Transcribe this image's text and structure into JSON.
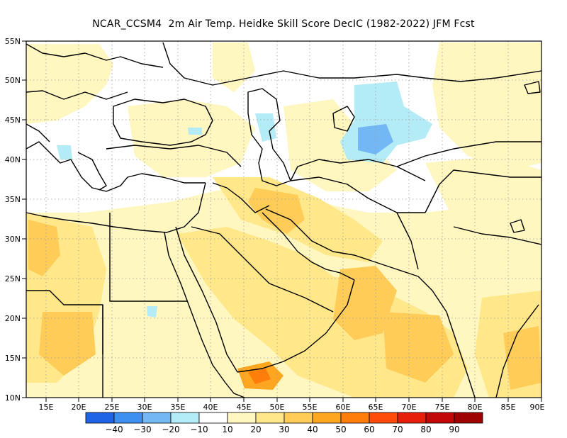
{
  "title": "NCAR_CCSM4  2m Air Temp. Heidke Skill Score DecIC (1982-2022) JFM Fcst",
  "map": {
    "lon_range": [
      12,
      90
    ],
    "lat_range": [
      10,
      55
    ],
    "lon_ticks": [
      "15E",
      "20E",
      "25E",
      "30E",
      "35E",
      "40E",
      "45E",
      "50E",
      "55E",
      "60E",
      "65E",
      "70E",
      "75E",
      "80E",
      "85E",
      "90E"
    ],
    "lat_ticks": [
      "55N",
      "50N",
      "45N",
      "40N",
      "35N",
      "30N",
      "25N",
      "20N",
      "15N",
      "10N"
    ],
    "gridlines": true
  },
  "colorbar": {
    "colors": [
      "#1f63e6",
      "#3d8ff0",
      "#73b8f5",
      "#b3ecf7",
      "#ffffff",
      "#fff7bf",
      "#ffe78a",
      "#ffcc58",
      "#ffa621",
      "#ff7d0a",
      "#ff4c0a",
      "#e61e0a",
      "#c20808",
      "#9e0202"
    ],
    "labels": [
      "-40",
      "-30",
      "-20",
      "-10",
      "10",
      "20",
      "30",
      "40",
      "50",
      "60",
      "70",
      "80",
      "90"
    ]
  },
  "colors": {
    "background_white": "#ffffff",
    "light_yellow": "#fff7bf",
    "yellow": "#ffe78a",
    "orange": "#ffcc58",
    "deep_orange": "#ffa621",
    "red_orange": "#ff7d0a",
    "light_cyan": "#b3ecf7",
    "light_blue": "#73b8f5",
    "coast": "#000000"
  }
}
